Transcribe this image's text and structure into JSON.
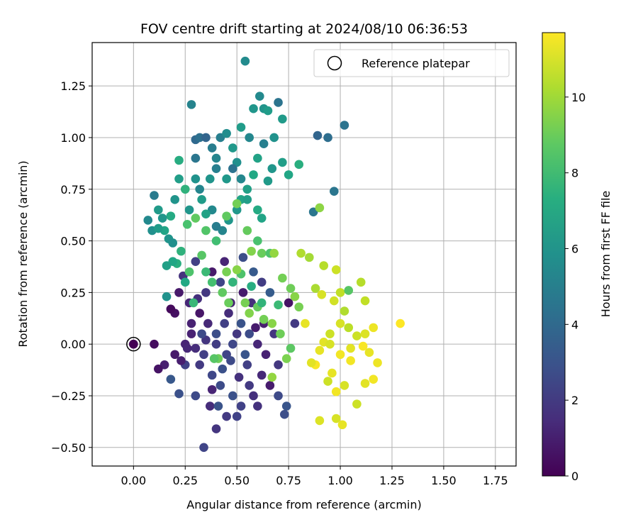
{
  "chart_data": {
    "type": "scatter",
    "title": "FOV centre drift starting at 2024/08/10 06:36:53",
    "xlabel": "Angular distance from reference (arcmin)",
    "ylabel": "Rotation from reference (arcmin)",
    "xlim": [
      -0.2,
      1.85
    ],
    "ylim": [
      -0.59,
      1.46
    ],
    "xticks": [
      0.0,
      0.25,
      0.5,
      0.75,
      1.0,
      1.25,
      1.5,
      1.75
    ],
    "xtick_labels": [
      "0.00",
      "0.25",
      "0.50",
      "0.75",
      "1.00",
      "1.25",
      "1.50",
      "1.75"
    ],
    "yticks": [
      -0.5,
      -0.25,
      0.0,
      0.25,
      0.5,
      0.75,
      1.0,
      1.25
    ],
    "ytick_labels": [
      "−0.50",
      "−0.25",
      "0.00",
      "0.25",
      "0.50",
      "0.75",
      "1.00",
      "1.25"
    ],
    "grid": true,
    "colorbar": {
      "label": "Hours from first FF file",
      "colormap": "viridis",
      "range": [
        0,
        11.7
      ],
      "ticks": [
        0,
        2,
        4,
        6,
        8,
        10
      ],
      "tick_labels": [
        "0",
        "2",
        "4",
        "6",
        "8",
        "10"
      ]
    },
    "legend": {
      "position": "top-right",
      "entries": [
        {
          "label": "Reference platepar",
          "marker": "open-circle"
        }
      ]
    },
    "reference_point": {
      "x": 0.0,
      "y": 0.0,
      "hours": 0.0
    },
    "point_columns": [
      "x",
      "y",
      "hours"
    ],
    "points": [
      [
        0.0,
        0.0,
        0.0
      ],
      [
        0.1,
        0.0,
        0.4
      ],
      [
        0.15,
        -0.1,
        1.0
      ],
      [
        0.12,
        -0.12,
        0.6
      ],
      [
        0.2,
        -0.05,
        0.8
      ],
      [
        0.25,
        0.0,
        1.2
      ],
      [
        0.3,
        -0.02,
        1.5
      ],
      [
        0.28,
        0.05,
        1.1
      ],
      [
        0.35,
        0.02,
        1.8
      ],
      [
        0.4,
        0.0,
        2.1
      ],
      [
        0.45,
        -0.05,
        2.4
      ],
      [
        0.5,
        0.05,
        1.9
      ],
      [
        0.55,
        -0.1,
        2.2
      ],
      [
        0.6,
        0.0,
        1.3
      ],
      [
        0.32,
        -0.1,
        2.0
      ],
      [
        0.38,
        -0.15,
        2.5
      ],
      [
        0.42,
        -0.2,
        2.7
      ],
      [
        0.48,
        -0.25,
        2.9
      ],
      [
        0.52,
        -0.3,
        2.3
      ],
      [
        0.58,
        -0.25,
        1.6
      ],
      [
        0.62,
        -0.15,
        1.4
      ],
      [
        0.66,
        -0.2,
        0.9
      ],
      [
        0.7,
        -0.25,
        2.6
      ],
      [
        0.74,
        -0.3,
        3.1
      ],
      [
        0.73,
        -0.34,
        2.8
      ],
      [
        0.6,
        -0.3,
        1.7
      ],
      [
        0.45,
        -0.35,
        2.0
      ],
      [
        0.4,
        -0.41,
        1.8
      ],
      [
        0.34,
        -0.5,
        2.4
      ],
      [
        0.37,
        -0.3,
        1.5
      ],
      [
        0.3,
        -0.25,
        2.6
      ],
      [
        0.25,
        -0.1,
        2.3
      ],
      [
        0.22,
        -0.24,
        2.9
      ],
      [
        0.18,
        -0.17,
        3.2
      ],
      [
        0.28,
        0.1,
        1.1
      ],
      [
        0.32,
        0.15,
        0.7
      ],
      [
        0.36,
        0.1,
        1.4
      ],
      [
        0.4,
        0.05,
        2.8
      ],
      [
        0.44,
        0.1,
        2.2
      ],
      [
        0.48,
        0.0,
        2.5
      ],
      [
        0.52,
        0.1,
        3.0
      ],
      [
        0.56,
        0.05,
        2.7
      ],
      [
        0.63,
        0.1,
        1.0
      ],
      [
        0.68,
        0.05,
        1.8
      ],
      [
        0.2,
        0.15,
        0.5
      ],
      [
        0.18,
        0.17,
        0.3
      ],
      [
        0.22,
        0.25,
        0.8
      ],
      [
        0.27,
        0.2,
        1.3
      ],
      [
        0.31,
        0.22,
        1.6
      ],
      [
        0.35,
        0.25,
        1.9
      ],
      [
        0.42,
        0.3,
        2.4
      ],
      [
        0.47,
        0.2,
        1.1
      ],
      [
        0.53,
        0.25,
        0.9
      ],
      [
        0.57,
        0.2,
        1.6
      ],
      [
        0.62,
        0.3,
        2.1
      ],
      [
        0.66,
        0.25,
        3.4
      ],
      [
        0.75,
        0.2,
        0.6
      ],
      [
        0.78,
        0.1,
        2.0
      ],
      [
        0.24,
        0.33,
        1.7
      ],
      [
        0.3,
        0.4,
        2.2
      ],
      [
        0.38,
        0.35,
        0.8
      ],
      [
        0.44,
        0.4,
        1.2
      ],
      [
        0.53,
        0.42,
        2.8
      ],
      [
        0.58,
        0.35,
        3.3
      ],
      [
        0.23,
        -0.08,
        1.0
      ],
      [
        0.26,
        -0.02,
        1.3
      ],
      [
        0.34,
        -0.05,
        2.2
      ],
      [
        0.47,
        -0.08,
        2.6
      ],
      [
        0.51,
        -0.16,
        1.7
      ],
      [
        0.56,
        -0.2,
        2.0
      ],
      [
        0.64,
        -0.05,
        1.1
      ],
      [
        0.7,
        -0.1,
        1.9
      ],
      [
        0.5,
        -0.35,
        2.3
      ],
      [
        0.38,
        -0.22,
        1.2
      ],
      [
        0.43,
        -0.12,
        2.9
      ],
      [
        0.54,
        -0.05,
        3.1
      ],
      [
        0.59,
        0.08,
        0.9
      ],
      [
        0.46,
        0.15,
        1.5
      ],
      [
        0.33,
        0.05,
        2.6
      ],
      [
        0.41,
        -0.3,
        3.0
      ],
      [
        0.1,
        0.72,
        4.8
      ],
      [
        0.07,
        0.6,
        5.5
      ],
      [
        0.09,
        0.55,
        5.8
      ],
      [
        0.12,
        0.65,
        6.3
      ],
      [
        0.15,
        0.55,
        6.8
      ],
      [
        0.18,
        0.62,
        7.1
      ],
      [
        0.2,
        0.7,
        6.0
      ],
      [
        0.22,
        0.8,
        6.5
      ],
      [
        0.22,
        0.89,
        7.2
      ],
      [
        0.25,
        0.75,
        7.5
      ],
      [
        0.27,
        0.65,
        6.1
      ],
      [
        0.3,
        0.8,
        5.9
      ],
      [
        0.3,
        0.9,
        4.6
      ],
      [
        0.28,
        1.16,
        5.2
      ],
      [
        0.3,
        0.99,
        4.0
      ],
      [
        0.32,
        1.0,
        4.3
      ],
      [
        0.35,
        1.0,
        3.8
      ],
      [
        0.38,
        0.95,
        4.9
      ],
      [
        0.4,
        0.9,
        5.3
      ],
      [
        0.42,
        1.0,
        5.0
      ],
      [
        0.45,
        1.02,
        5.7
      ],
      [
        0.48,
        0.95,
        6.2
      ],
      [
        0.5,
        0.88,
        5.8
      ],
      [
        0.52,
        1.05,
        6.4
      ],
      [
        0.54,
        1.37,
        5.6
      ],
      [
        0.56,
        1.0,
        5.4
      ],
      [
        0.58,
        1.14,
        6.1
      ],
      [
        0.61,
        1.2,
        5.5
      ],
      [
        0.63,
        1.14,
        6.0
      ],
      [
        0.65,
        1.13,
        6.4
      ],
      [
        0.7,
        1.17,
        4.5
      ],
      [
        0.72,
        1.09,
        6.3
      ],
      [
        0.68,
        1.0,
        5.9
      ],
      [
        0.63,
        0.97,
        5.0
      ],
      [
        0.6,
        0.9,
        6.7
      ],
      [
        0.58,
        0.82,
        7.0
      ],
      [
        0.55,
        0.75,
        6.6
      ],
      [
        0.52,
        0.7,
        6.8
      ],
      [
        0.5,
        0.65,
        6.2
      ],
      [
        0.46,
        0.6,
        6.1
      ],
      [
        0.43,
        0.55,
        5.3
      ],
      [
        0.4,
        0.57,
        4.9
      ],
      [
        0.38,
        0.65,
        5.5
      ],
      [
        0.35,
        0.63,
        6.7
      ],
      [
        0.33,
        0.7,
        6.4
      ],
      [
        0.32,
        0.75,
        5.3
      ],
      [
        0.37,
        0.8,
        6.0
      ],
      [
        0.4,
        0.85,
        5.0
      ],
      [
        0.45,
        0.8,
        6.2
      ],
      [
        0.48,
        0.85,
        4.4
      ],
      [
        0.52,
        0.8,
        5.4
      ],
      [
        0.55,
        0.7,
        6.5
      ],
      [
        0.6,
        0.65,
        7.1
      ],
      [
        0.62,
        0.61,
        6.8
      ],
      [
        0.65,
        0.79,
        6.3
      ],
      [
        0.67,
        0.85,
        6.1
      ],
      [
        0.72,
        0.88,
        6.5
      ],
      [
        0.75,
        0.82,
        6.9
      ],
      [
        0.8,
        0.87,
        7.3
      ],
      [
        0.87,
        0.64,
        4.6
      ],
      [
        0.89,
        1.01,
        3.8
      ],
      [
        0.94,
        1.0,
        4.2
      ],
      [
        0.97,
        0.74,
        4.6
      ],
      [
        1.02,
        1.06,
        4.5
      ],
      [
        0.9,
        0.66,
        9.7
      ],
      [
        0.23,
        0.45,
        7.5
      ],
      [
        0.26,
        0.58,
        8.3
      ],
      [
        0.3,
        0.61,
        8.8
      ],
      [
        0.35,
        0.55,
        8.5
      ],
      [
        0.4,
        0.5,
        8.1
      ],
      [
        0.45,
        0.62,
        8.8
      ],
      [
        0.5,
        0.68,
        9.2
      ],
      [
        0.55,
        0.55,
        8.9
      ],
      [
        0.6,
        0.5,
        8.3
      ],
      [
        0.57,
        0.45,
        9.5
      ],
      [
        0.62,
        0.44,
        9.0
      ],
      [
        0.66,
        0.44,
        8.4
      ],
      [
        0.68,
        0.44,
        9.8
      ],
      [
        0.81,
        0.44,
        10.3
      ],
      [
        0.85,
        0.42,
        10.1
      ],
      [
        0.92,
        0.38,
        10.4
      ],
      [
        0.98,
        0.36,
        10.8
      ],
      [
        0.88,
        0.27,
        10.2
      ],
      [
        0.91,
        0.24,
        11.0
      ],
      [
        0.97,
        0.21,
        10.9
      ],
      [
        1.0,
        0.25,
        10.6
      ],
      [
        1.04,
        0.26,
        8.6
      ],
      [
        1.1,
        0.3,
        10.4
      ],
      [
        1.12,
        0.21,
        10.6
      ],
      [
        1.02,
        0.16,
        10.3
      ],
      [
        1.0,
        0.1,
        11.0
      ],
      [
        1.04,
        0.08,
        10.5
      ],
      [
        1.08,
        0.04,
        10.8
      ],
      [
        1.12,
        0.05,
        11.1
      ],
      [
        1.16,
        0.08,
        11.4
      ],
      [
        0.95,
        0.05,
        10.8
      ],
      [
        0.92,
        0.01,
        11.2
      ],
      [
        0.9,
        -0.03,
        11.3
      ],
      [
        0.95,
        0.0,
        11.0
      ],
      [
        1.0,
        -0.05,
        11.5
      ],
      [
        1.05,
        -0.02,
        11.2
      ],
      [
        1.11,
        -0.01,
        11.6
      ],
      [
        1.14,
        -0.04,
        11.3
      ],
      [
        1.18,
        -0.09,
        11.4
      ],
      [
        1.16,
        -0.17,
        11.5
      ],
      [
        1.12,
        -0.19,
        11.2
      ],
      [
        1.08,
        -0.29,
        10.8
      ],
      [
        1.02,
        -0.2,
        11.0
      ],
      [
        0.98,
        -0.23,
        11.5
      ],
      [
        0.96,
        -0.14,
        11.3
      ],
      [
        0.94,
        -0.18,
        10.8
      ],
      [
        0.9,
        -0.37,
        11.1
      ],
      [
        0.98,
        -0.36,
        11.0
      ],
      [
        1.01,
        -0.39,
        11.3
      ],
      [
        1.05,
        -0.08,
        11.5
      ],
      [
        0.88,
        -0.1,
        11.6
      ],
      [
        0.86,
        -0.09,
        11.2
      ],
      [
        0.83,
        0.1,
        11.3
      ],
      [
        0.78,
        0.23,
        9.6
      ],
      [
        0.8,
        0.18,
        9.3
      ],
      [
        0.72,
        0.32,
        9.2
      ],
      [
        0.76,
        0.27,
        9.1
      ],
      [
        1.29,
        0.1,
        11.7
      ],
      [
        0.33,
        0.43,
        8.6
      ],
      [
        0.35,
        0.35,
        7.9
      ],
      [
        0.38,
        0.3,
        8.2
      ],
      [
        0.43,
        0.25,
        8.8
      ],
      [
        0.46,
        0.2,
        9.0
      ],
      [
        0.48,
        0.3,
        7.6
      ],
      [
        0.52,
        0.34,
        8.4
      ],
      [
        0.54,
        0.2,
        9.3
      ],
      [
        0.56,
        0.15,
        9.5
      ],
      [
        0.6,
        0.18,
        8.9
      ],
      [
        0.63,
        0.12,
        9.2
      ],
      [
        0.67,
        0.1,
        9.6
      ],
      [
        0.71,
        0.05,
        9.1
      ],
      [
        0.76,
        -0.02,
        8.7
      ],
      [
        0.74,
        -0.07,
        9.4
      ],
      [
        0.67,
        -0.16,
        9.8
      ],
      [
        0.41,
        -0.07,
        9.1
      ],
      [
        0.39,
        -0.07,
        8.6
      ],
      [
        0.45,
        0.35,
        9.3
      ],
      [
        0.5,
        0.36,
        9.6
      ],
      [
        0.57,
        0.28,
        7.2
      ],
      [
        0.62,
        0.2,
        7.6
      ],
      [
        0.7,
        0.19,
        7.9
      ],
      [
        0.29,
        0.2,
        7.8
      ],
      [
        0.27,
        0.35,
        8.4
      ],
      [
        0.25,
        0.3,
        7.0
      ],
      [
        0.21,
        0.39,
        7.3
      ],
      [
        0.19,
        0.4,
        6.9
      ],
      [
        0.16,
        0.38,
        6.6
      ],
      [
        0.12,
        0.56,
        6.4
      ],
      [
        0.14,
        0.61,
        6.1
      ],
      [
        0.17,
        0.51,
        6.0
      ],
      [
        0.19,
        0.49,
        5.8
      ],
      [
        0.16,
        0.23,
        5.9
      ]
    ]
  }
}
